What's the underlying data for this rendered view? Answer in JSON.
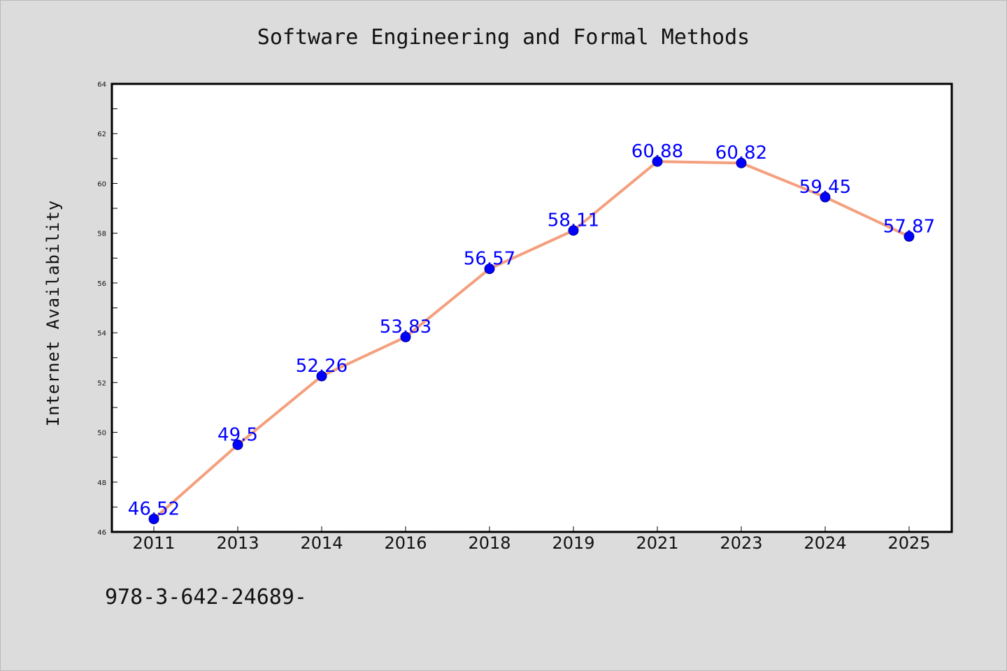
{
  "chart_data": {
    "type": "line",
    "title": "Software Engineering and Formal Methods",
    "xlabel": "",
    "ylabel": "Internet Availability",
    "categories": [
      "2011",
      "2013",
      "2014",
      "2016",
      "2018",
      "2019",
      "2021",
      "2023",
      "2024",
      "2025"
    ],
    "series": [
      {
        "values": [
          46.52,
          49.5,
          52.26,
          53.83,
          56.57,
          58.11,
          60.88,
          60.82,
          59.45,
          57.87
        ],
        "labels": [
          "46.52",
          "49.5",
          "52.26",
          "53.83",
          "56.57",
          "58.11",
          "60.88",
          "60.82",
          "59.45",
          "57.87"
        ]
      }
    ],
    "ylim": [
      46,
      64
    ],
    "yticks": [
      "46",
      "48",
      "50",
      "52",
      "54",
      "56",
      "58",
      "60",
      "62",
      "64"
    ],
    "grid": false,
    "colors": {
      "line": "#f4a07e",
      "marker": "#0000ff",
      "marker_edge": "#00008b",
      "data_label": "#0000ff",
      "background": "#dcdcdc",
      "plot_background": "#ffffff"
    }
  },
  "footer": {
    "text": "978-3-642-24689-"
  }
}
